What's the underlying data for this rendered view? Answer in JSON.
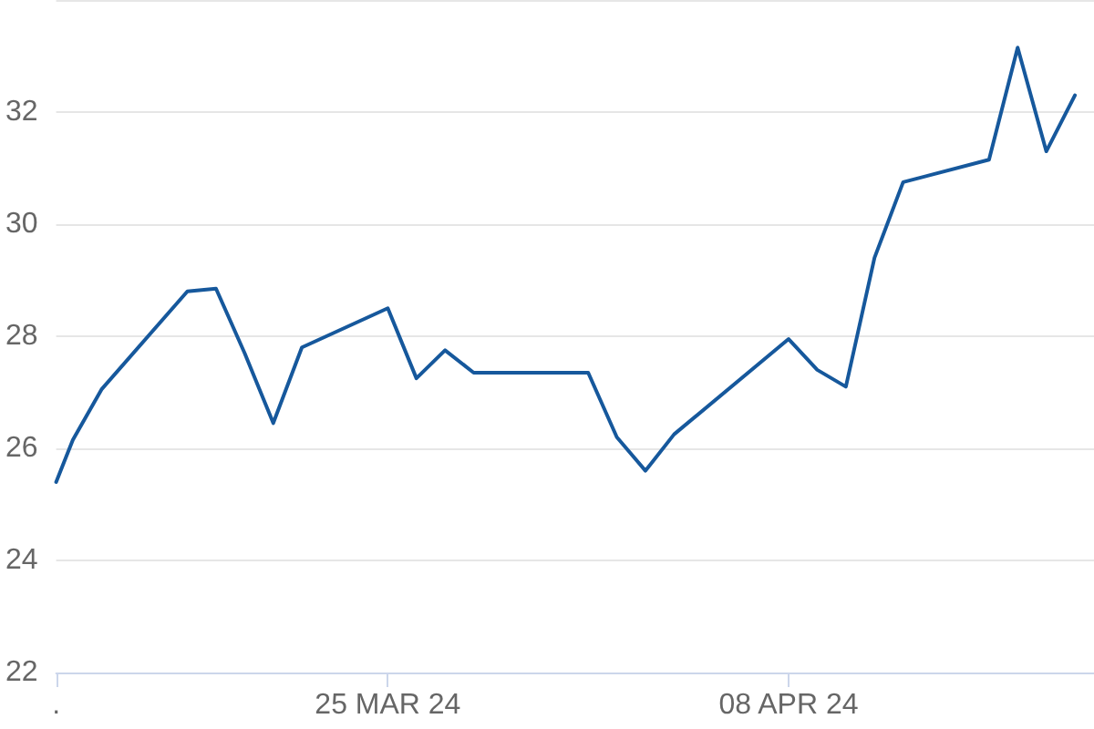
{
  "chart_data": {
    "type": "line",
    "x": [
      "2024-03-13T10:00",
      "2024-03-14",
      "2024-03-15",
      "2024-03-18",
      "2024-03-19",
      "2024-03-20",
      "2024-03-21",
      "2024-03-22",
      "2024-03-25",
      "2024-03-26",
      "2024-03-27",
      "2024-03-28",
      "2024-04-01",
      "2024-04-02",
      "2024-04-03",
      "2024-04-04",
      "2024-04-08",
      "2024-04-09",
      "2024-04-10",
      "2024-04-11",
      "2024-04-12",
      "2024-04-15",
      "2024-04-16",
      "2024-04-17",
      "2024-04-18"
    ],
    "series": [
      {
        "color": "#16589c",
        "values": [
          25.4,
          26.15,
          27.05,
          28.8,
          28.85,
          27.7,
          26.45,
          27.8,
          28.5,
          27.25,
          27.75,
          27.35,
          27.35,
          26.2,
          25.6,
          26.25,
          27.95,
          27.4,
          27.1,
          29.4,
          30.75,
          31.15,
          33.15,
          31.3,
          32.3
        ]
      }
    ],
    "xlim": [
      "2024-03-13T10:00",
      "2024-04-18T16:00"
    ],
    "xticks": [
      {
        "value": "2024-03-13T10:00",
        "label": "."
      },
      {
        "value": "2024-03-25",
        "label": "25 MAR 24"
      },
      {
        "value": "2024-04-08",
        "label": "08 APR 24"
      }
    ],
    "ylim": [
      22,
      34
    ],
    "yticks": [
      22,
      24,
      26,
      28,
      30,
      32,
      {
        "value": 34,
        "label": null
      }
    ],
    "grid": "y"
  }
}
